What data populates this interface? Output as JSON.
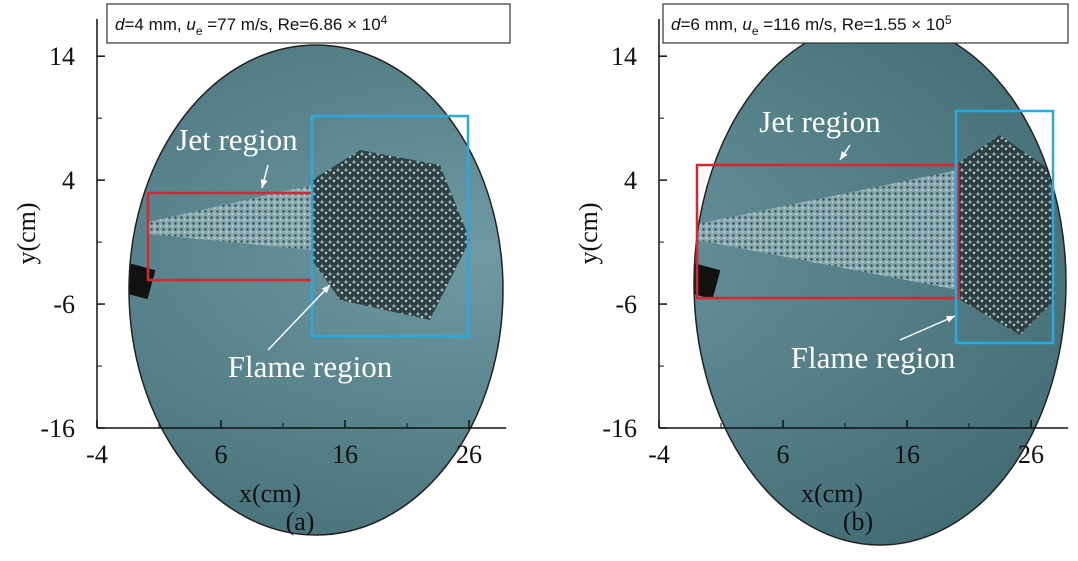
{
  "panels": [
    {
      "label": "(a)",
      "x_label": "x(cm)",
      "y_label": "y(cm)",
      "title_parts": [
        "d",
        "=4 mm, ",
        "u",
        "e",
        " =77 m/s, Re=6.86  ×  10",
        "4"
      ],
      "jet_label": "Jet region",
      "flame_label": "Flame region",
      "xlim": [
        -4,
        29
      ],
      "ylim": [
        -16,
        17
      ],
      "xticks": [
        -4,
        6,
        16,
        26
      ],
      "yticks": [
        -16,
        -6,
        4,
        14
      ]
    },
    {
      "label": "(b)",
      "x_label": "x(cm)",
      "y_label": "y(cm)",
      "title_parts": [
        "d",
        "=6 mm, ",
        "u",
        "e",
        " =116 m/s, Re=1.55 × 10",
        "5"
      ],
      "jet_label": "Jet region",
      "flame_label": "Flame region",
      "xlim": [
        -4,
        29
      ],
      "ylim": [
        -16,
        17
      ],
      "xticks": [
        -4,
        6,
        16,
        26
      ],
      "yticks": [
        -16,
        -6,
        4,
        14
      ]
    }
  ]
}
